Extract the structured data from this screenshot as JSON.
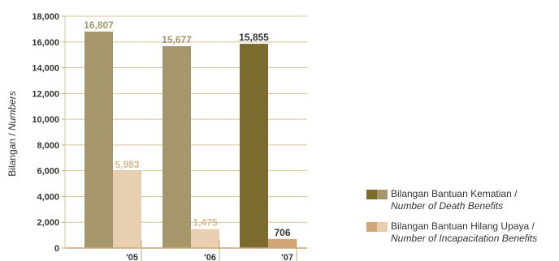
{
  "chart_data": {
    "type": "bar",
    "categories": [
      "'05",
      "'06",
      "'07"
    ],
    "series": [
      {
        "name": "Bilangan Bantuan Kematian / Number of Death Benefits",
        "values": [
          16807,
          15677,
          15855
        ],
        "value_labels": [
          "16,807",
          "15,677",
          "15,855"
        ]
      },
      {
        "name": "Bilangan Bantuan Hilang Upaya / Number of Incapacitation Benefits",
        "values": [
          5983,
          1475,
          706
        ],
        "value_labels": [
          "5,983",
          "1,475",
          "706"
        ]
      }
    ],
    "ylabel": {
      "main": "Bilangan / ",
      "italic": "Numbers"
    },
    "ylim": [
      0,
      18000
    ],
    "yticks": [
      0,
      2000,
      4000,
      6000,
      8000,
      10000,
      12000,
      14000,
      16000,
      18000
    ],
    "ytick_labels": [
      "0",
      "2,000",
      "4,000",
      "6,000",
      "8,000",
      "10,000",
      "12,000",
      "14,000",
      "16,000",
      "18,000"
    ],
    "grid": true,
    "legend_position": "bottom-right",
    "colors": {
      "death_past": "#a6966b",
      "death_current": "#7b6b2e",
      "incap_past": "#e8cfb0",
      "incap_current": "#d3a677",
      "label_past_death": "#a6966b",
      "label_past_incap": "#d8b98d",
      "label_current": "#333333",
      "grid": "#d6c49a",
      "axis": "#c9a970"
    }
  },
  "legend": [
    {
      "line1": "Bilangan Bantuan Kematian /",
      "line2": "Number of Death Benefits"
    },
    {
      "line1": "Bilangan Bantuan Hilang Upaya /",
      "line2": "Number of Incapacitation Benefits"
    }
  ]
}
